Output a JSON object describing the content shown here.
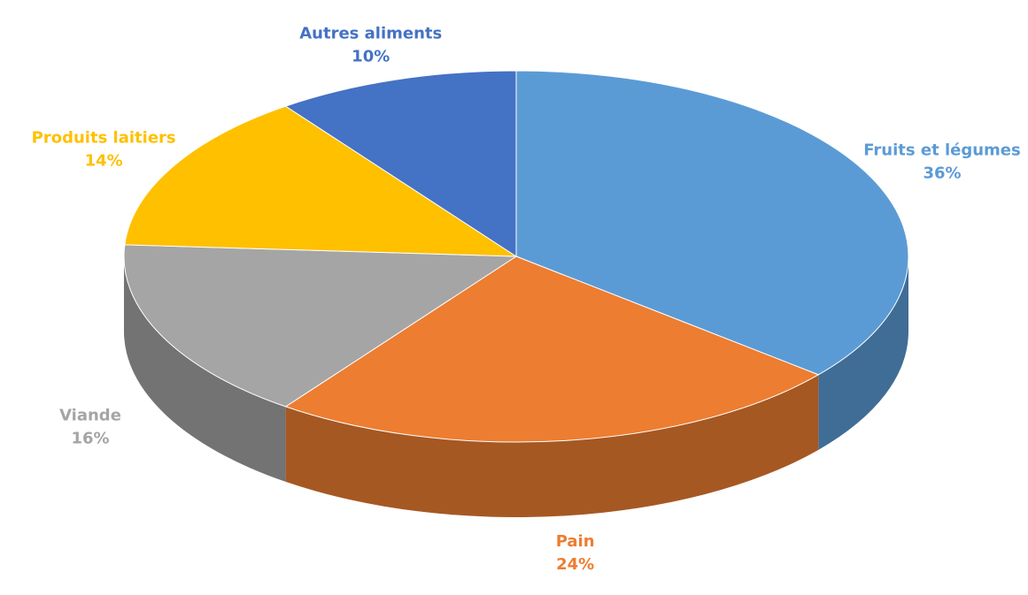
{
  "chart_data": {
    "type": "pie",
    "categories": [
      "Fruits et légumes",
      "Pain",
      "Viande",
      "Produits laitiers",
      "Autres aliments"
    ],
    "values": [
      36,
      24,
      16,
      14,
      10
    ],
    "value_labels": [
      "36%",
      "24%",
      "16%",
      "14%",
      "10%"
    ],
    "colors": [
      "#5b9bd5",
      "#ed7d31",
      "#a5a5a5",
      "#ffc000",
      "#4472c4"
    ]
  }
}
